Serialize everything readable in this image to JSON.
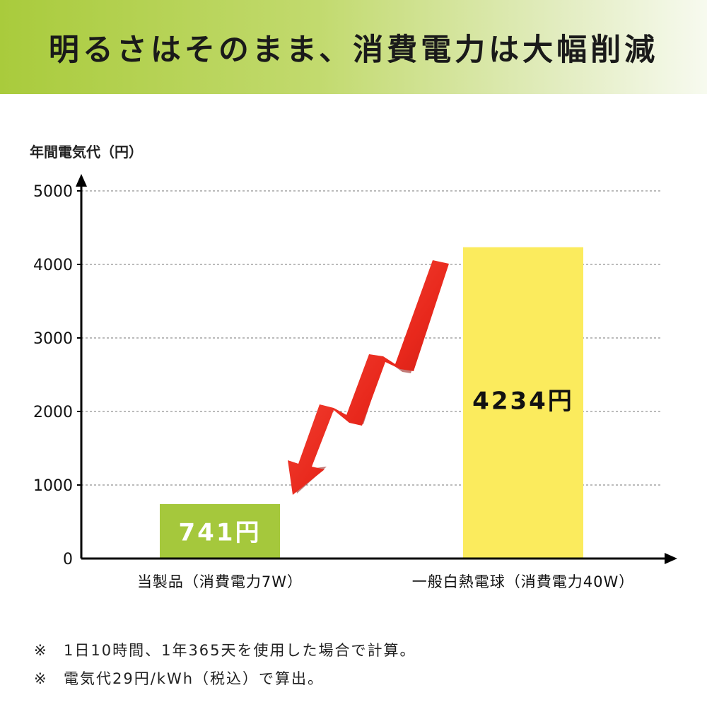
{
  "header": {
    "title": "明るさはそのまま、消費電力は大幅削減"
  },
  "chart_data": {
    "type": "bar",
    "ylabel": "年間電気代（円）",
    "ylim": [
      0,
      5000
    ],
    "yticks": [
      0,
      1000,
      2000,
      3000,
      4000,
      5000
    ],
    "grid": true,
    "categories": [
      "当製品（消費電力7W）",
      "一般白熱電球（消費電力40W）"
    ],
    "values": [
      741,
      4234
    ],
    "data_labels": [
      "741円",
      "4234円"
    ],
    "colors": [
      "#a5c83c",
      "#fbeb5d"
    ]
  },
  "notes": [
    {
      "mark": "※",
      "text": "1日10時間、1年365天を使用した場合で計算。"
    },
    {
      "mark": "※",
      "text": "電気代29円/kWh（税込）で算出。"
    }
  ]
}
